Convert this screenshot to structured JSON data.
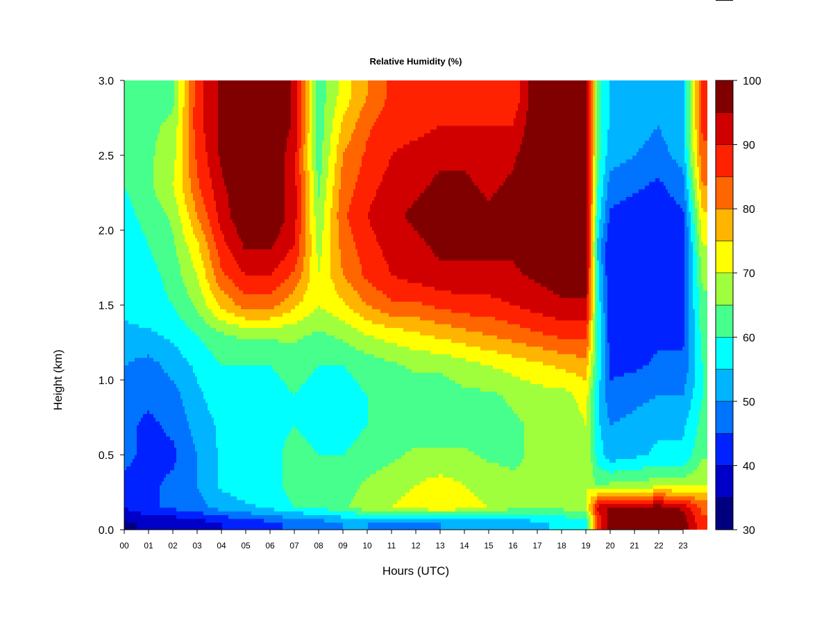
{
  "chart_data": {
    "type": "heatmap",
    "title": "Relative Humidity (%)",
    "xlabel": "Hours (UTC)",
    "ylabel": "Height (km)",
    "xlim": [
      0,
      24
    ],
    "ylim": [
      0.0,
      3.0
    ],
    "x_tick_labels": [
      "00",
      "01",
      "02",
      "03",
      "04",
      "05",
      "06",
      "07",
      "08",
      "09",
      "10",
      "11",
      "12",
      "13",
      "14",
      "15",
      "16",
      "17",
      "18",
      "19",
      "20",
      "21",
      "22",
      "23"
    ],
    "y_ticks": [
      0.0,
      0.5,
      1.0,
      1.5,
      2.0,
      2.5,
      3.0
    ],
    "y_tick_labels": [
      "0.0",
      "0.5",
      "1.0",
      "1.5",
      "2.0",
      "2.5",
      "3.0"
    ],
    "colorbar": {
      "range": [
        30,
        100
      ],
      "step": 5,
      "ticks": [
        30,
        40,
        50,
        60,
        70,
        80,
        90,
        100
      ],
      "tick_labels": [
        "30",
        "40",
        "50",
        "60",
        "70",
        "80",
        "90",
        "100"
      ],
      "colors": [
        "#00007f",
        "#0000c8",
        "#0022ff",
        "#0073ff",
        "#00b4ff",
        "#00ffff",
        "#46ff8c",
        "#a0ff3c",
        "#ffff00",
        "#ffb400",
        "#ff6600",
        "#ff2200",
        "#d00000",
        "#800000"
      ]
    },
    "heights_km": [
      0.05,
      0.15,
      0.3,
      0.5,
      0.7,
      0.9,
      1.1,
      1.3,
      1.5,
      1.7,
      1.9,
      2.1,
      2.3,
      2.5,
      2.7,
      2.9
    ],
    "hours_utc": [
      0,
      1,
      2,
      3,
      4,
      5,
      6,
      7,
      8,
      9,
      10,
      11,
      12,
      13,
      14,
      15,
      16,
      17,
      18,
      19,
      19.5,
      20,
      21,
      22,
      23,
      23.8
    ],
    "rh_profiles": [
      [
        34,
        40,
        44,
        46,
        46,
        48,
        50,
        54,
        56,
        56,
        56,
        58,
        60,
        60,
        62,
        62
      ],
      [
        36,
        44,
        44,
        44,
        44,
        46,
        48,
        54,
        58,
        58,
        60,
        62,
        64,
        64,
        64,
        62
      ],
      [
        36,
        46,
        46,
        44,
        46,
        48,
        52,
        56,
        60,
        62,
        64,
        66,
        70,
        68,
        66,
        64
      ],
      [
        38,
        48,
        50,
        50,
        52,
        54,
        56,
        60,
        66,
        70,
        74,
        80,
        84,
        86,
        88,
        88
      ],
      [
        40,
        52,
        56,
        56,
        56,
        58,
        60,
        64,
        76,
        84,
        88,
        92,
        94,
        96,
        96,
        96
      ],
      [
        42,
        54,
        58,
        58,
        58,
        58,
        60,
        66,
        82,
        90,
        96,
        100,
        100,
        100,
        100,
        100
      ],
      [
        44,
        56,
        58,
        58,
        58,
        58,
        60,
        66,
        82,
        90,
        96,
        100,
        100,
        100,
        100,
        100
      ],
      [
        46,
        60,
        62,
        62,
        60,
        60,
        62,
        66,
        76,
        84,
        90,
        92,
        92,
        92,
        94,
        94
      ],
      [
        48,
        60,
        62,
        60,
        58,
        58,
        60,
        64,
        70,
        70,
        68,
        66,
        64,
        62,
        62,
        62
      ],
      [
        50,
        64,
        62,
        60,
        58,
        58,
        60,
        66,
        74,
        80,
        82,
        84,
        82,
        80,
        76,
        72
      ],
      [
        50,
        68,
        66,
        62,
        60,
        60,
        62,
        70,
        80,
        86,
        88,
        90,
        88,
        86,
        84,
        80
      ],
      [
        48,
        70,
        68,
        64,
        62,
        62,
        64,
        72,
        84,
        90,
        92,
        94,
        92,
        90,
        88,
        86
      ],
      [
        48,
        72,
        70,
        66,
        62,
        62,
        66,
        74,
        84,
        92,
        94,
        96,
        94,
        92,
        88,
        86
      ],
      [
        50,
        74,
        72,
        66,
        62,
        62,
        66,
        76,
        86,
        94,
        96,
        98,
        96,
        94,
        90,
        86
      ],
      [
        52,
        72,
        70,
        66,
        62,
        64,
        68,
        78,
        88,
        94,
        96,
        98,
        96,
        94,
        90,
        88
      ],
      [
        52,
        70,
        68,
        64,
        62,
        64,
        70,
        80,
        88,
        94,
        96,
        96,
        94,
        92,
        90,
        88
      ],
      [
        52,
        66,
        66,
        64,
        64,
        66,
        72,
        82,
        90,
        94,
        96,
        98,
        96,
        94,
        90,
        86
      ],
      [
        54,
        66,
        66,
        66,
        66,
        68,
        74,
        84,
        92,
        96,
        100,
        100,
        100,
        100,
        100,
        100
      ],
      [
        56,
        66,
        66,
        66,
        66,
        68,
        76,
        86,
        94,
        98,
        100,
        100,
        100,
        100,
        100,
        100
      ],
      [
        56,
        70,
        70,
        70,
        70,
        72,
        78,
        86,
        94,
        98,
        100,
        100,
        100,
        100,
        100,
        100
      ],
      [
        86,
        92,
        64,
        58,
        56,
        56,
        58,
        60,
        58,
        56,
        54,
        58,
        60,
        62,
        62,
        62
      ],
      [
        98,
        96,
        66,
        52,
        50,
        46,
        44,
        42,
        42,
        40,
        40,
        44,
        48,
        52,
        54,
        54
      ],
      [
        100,
        96,
        66,
        54,
        52,
        48,
        44,
        42,
        42,
        40,
        40,
        42,
        46,
        50,
        52,
        52
      ],
      [
        100,
        98,
        68,
        56,
        54,
        50,
        46,
        44,
        42,
        40,
        40,
        42,
        44,
        48,
        50,
        50
      ],
      [
        98,
        94,
        68,
        56,
        54,
        50,
        46,
        44,
        44,
        42,
        42,
        44,
        48,
        52,
        54,
        54
      ],
      [
        86,
        84,
        70,
        64,
        62,
        60,
        60,
        62,
        64,
        66,
        70,
        74,
        80,
        84,
        86,
        86
      ]
    ]
  }
}
